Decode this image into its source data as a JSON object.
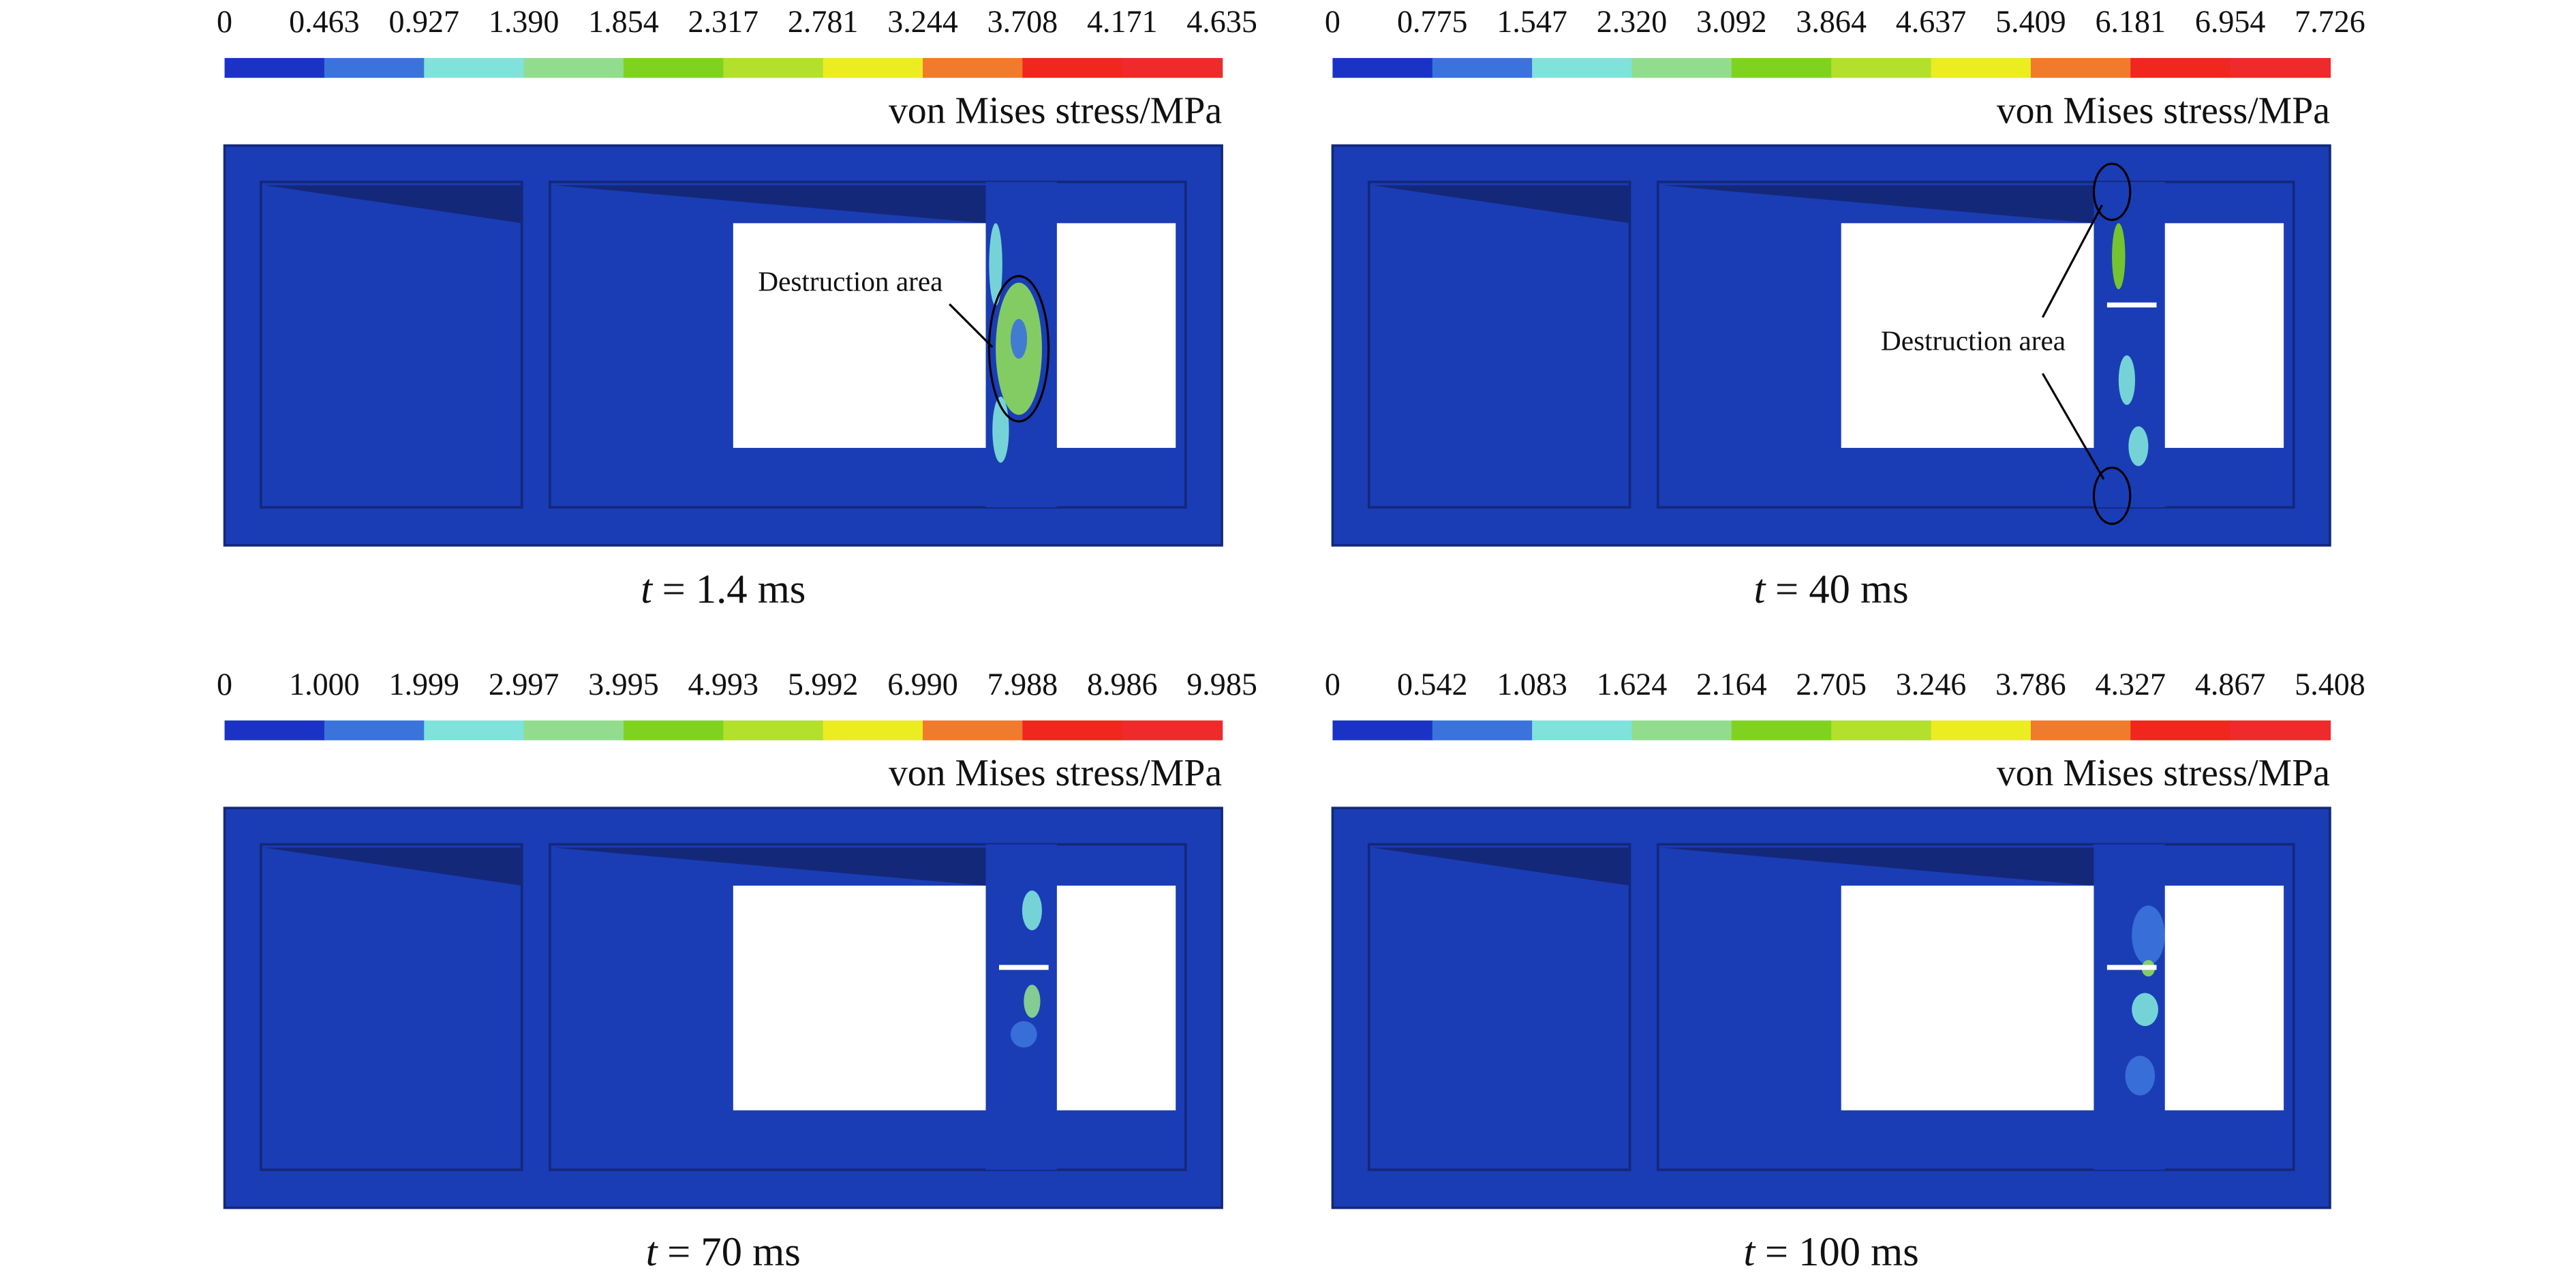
{
  "panels": [
    {
      "colorbar_ticks": [
        "0",
        "0.463",
        "0.927",
        "1.390",
        "1.854",
        "2.317",
        "2.781",
        "3.244",
        "3.708",
        "4.171",
        "4.635"
      ],
      "colorbar_label": "von Mises stress/MPa",
      "time_symbol": "t",
      "time_text": "= 1.4 ms",
      "annotation": "Destruction area"
    },
    {
      "colorbar_ticks": [
        "0",
        "0.775",
        "1.547",
        "2.320",
        "3.092",
        "3.864",
        "4.637",
        "5.409",
        "6.181",
        "6.954",
        "7.726"
      ],
      "colorbar_label": "von Mises stress/MPa",
      "time_symbol": "t",
      "time_text": "= 40 ms",
      "annotation": "Destruction area"
    },
    {
      "colorbar_ticks": [
        "0",
        "1.000",
        "1.999",
        "2.997",
        "3.995",
        "4.993",
        "5.992",
        "6.990",
        "7.988",
        "8.986",
        "9.985"
      ],
      "colorbar_label": "von Mises stress/MPa",
      "time_symbol": "t",
      "time_text": "= 70 ms"
    },
    {
      "colorbar_ticks": [
        "0",
        "0.542",
        "1.083",
        "1.624",
        "2.164",
        "2.705",
        "3.246",
        "3.786",
        "4.327",
        "4.867",
        "5.408"
      ],
      "colorbar_label": "von Mises stress/MPa",
      "time_symbol": "t",
      "time_text": "= 100 ms"
    }
  ]
}
